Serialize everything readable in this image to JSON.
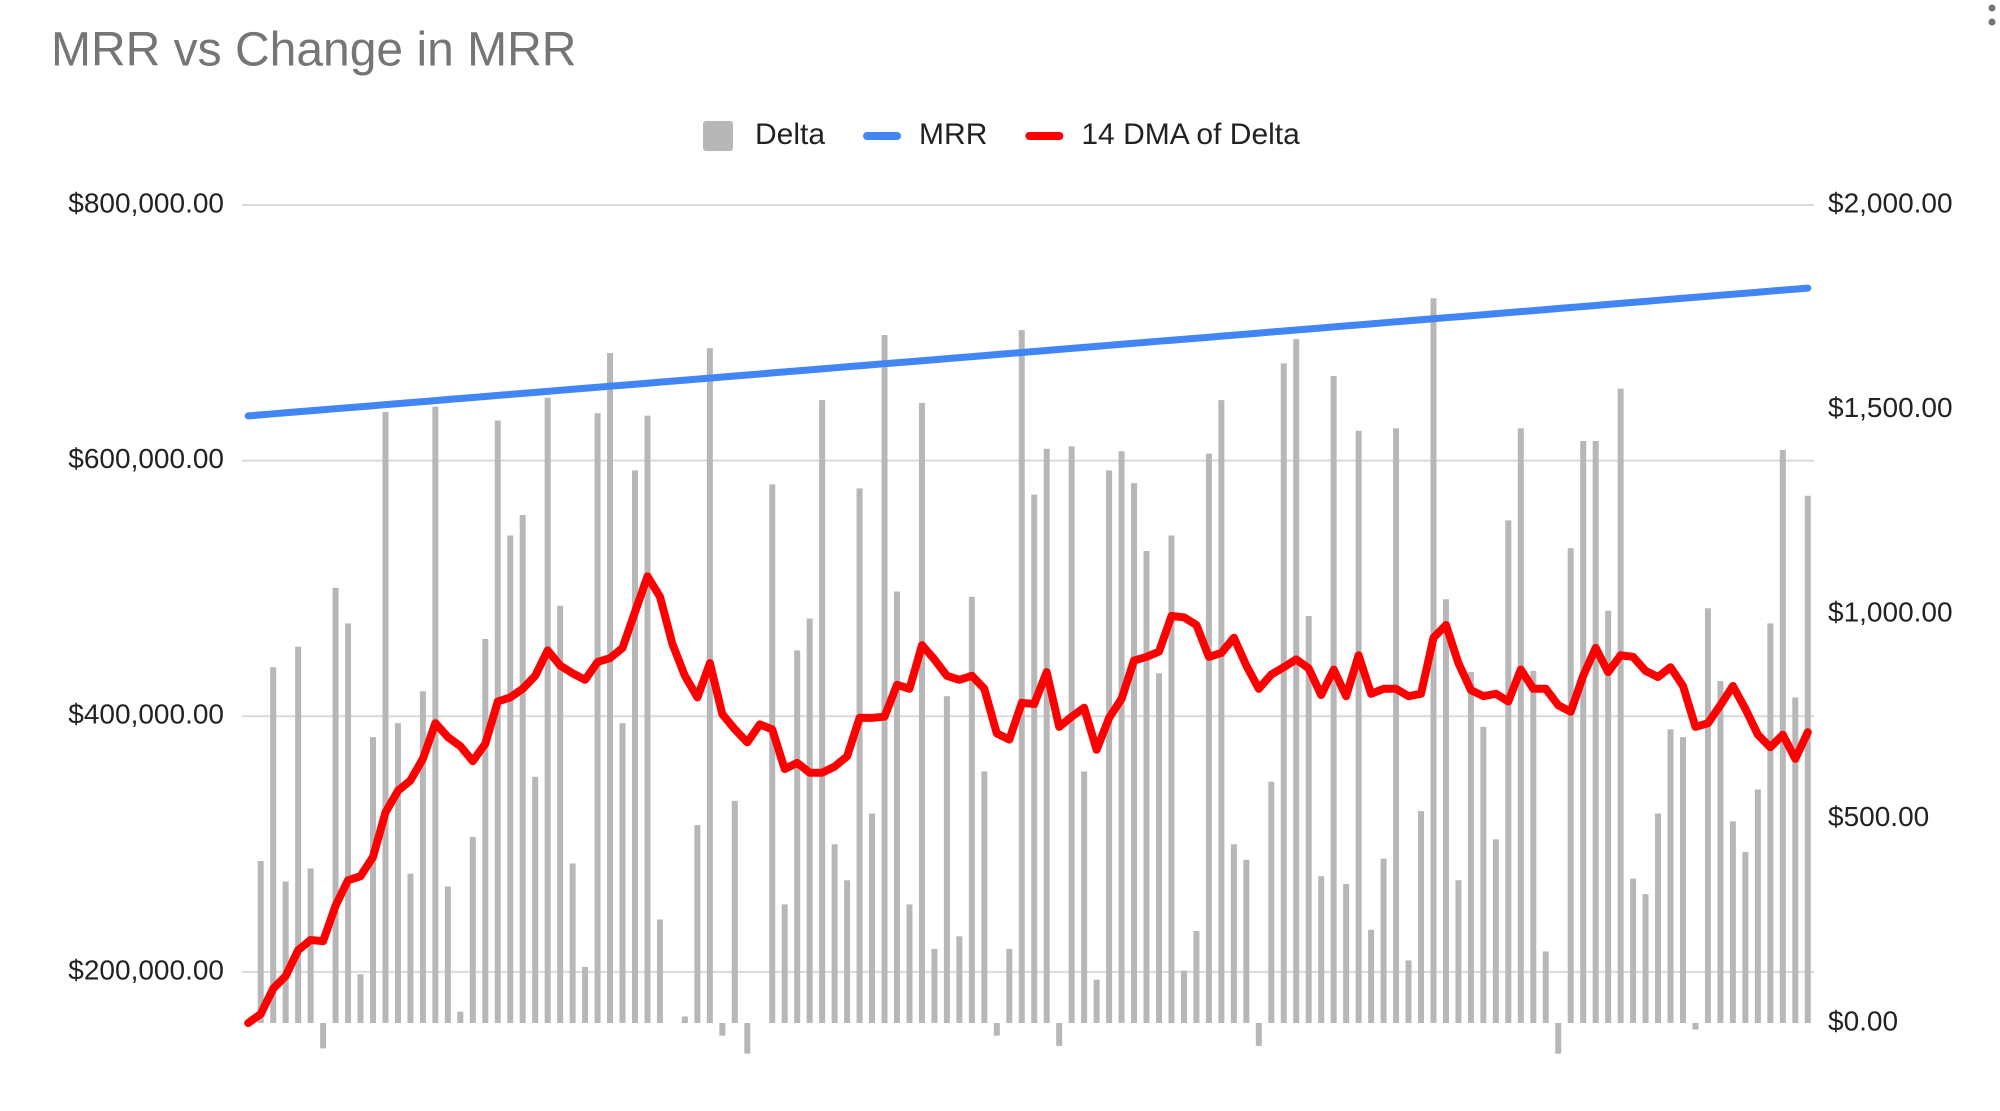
{
  "chart_data": {
    "type": "combo",
    "title": "MRR vs Change in MRR",
    "legend": "top",
    "grid": true,
    "ylim": [
      160000,
      800000
    ],
    "yticks": [
      {
        "value": 200000,
        "label": "$200,000.00"
      },
      {
        "value": 400000,
        "label": "$400,000.00"
      },
      {
        "value": 600000,
        "label": "$600,000.00"
      },
      {
        "value": 800000,
        "label": "$800,000.00"
      }
    ],
    "y2lim": [
      0,
      2000
    ],
    "y2ticks": [
      {
        "value": 0,
        "label": "$0.00"
      },
      {
        "value": 500,
        "label": "$500.00"
      },
      {
        "value": 1000,
        "label": "$1,000.00"
      },
      {
        "value": 1500,
        "label": "$1,500.00"
      },
      {
        "value": 2000,
        "label": "$2,000.00"
      }
    ],
    "series": [
      {
        "name": "Delta",
        "type": "bar",
        "axis": "y2",
        "color": "#b7b7b7",
        "values": [
          5,
          396,
          870,
          346,
          920,
          378,
          -62,
          1064,
          977,
          119,
          699,
          1494,
          733,
          365,
          811,
          1507,
          334,
          28,
          455,
          939,
          1473,
          1192,
          1242,
          602,
          1529,
          1020,
          390,
          137,
          1491,
          1638,
          733,
          1351,
          1485,
          253,
          0,
          16,
          484,
          1650,
          -31,
          543,
          -75,
          0,
          1317,
          290,
          911,
          989,
          1523,
          437,
          349,
          1307,
          512,
          1682,
          1055,
          290,
          1516,
          181,
          799,
          212,
          1042,
          615,
          -31,
          181,
          1694,
          1292,
          1404,
          -56,
          1410,
          615,
          106,
          1351,
          1398,
          1320,
          1154,
          855,
          1192,
          128,
          225,
          1392,
          1523,
          437,
          399,
          -56,
          590,
          1613,
          1672,
          995,
          359,
          1582,
          340,
          1448,
          228,
          402,
          1454,
          153,
          518,
          1772,
          1036,
          349,
          858,
          724,
          449,
          1229,
          1454,
          861,
          175,
          -75,
          1161,
          1423,
          1423,
          1008,
          1551,
          353,
          315,
          512,
          718,
          699,
          -16,
          1014,
          836,
          493,
          418,
          571,
          977,
          1401,
          796,
          1289
        ]
      },
      {
        "name": "MRR",
        "type": "line",
        "axis": "y",
        "color": "#4285f4",
        "values": [
          635000,
          635800,
          636600,
          637400,
          638200,
          639000,
          639800,
          640600,
          641400,
          642200,
          643000,
          643800,
          644600,
          645400,
          646200,
          647000,
          647800,
          648600,
          649400,
          650200,
          651000,
          651800,
          652600,
          653400,
          654200,
          655000,
          655800,
          656600,
          657400,
          658200,
          659000,
          659800,
          660600,
          661400,
          662200,
          663000,
          663800,
          664600,
          665400,
          666200,
          667000,
          667800,
          668600,
          669400,
          670200,
          671000,
          671800,
          672600,
          673400,
          674200,
          675000,
          675800,
          676600,
          677400,
          678200,
          679000,
          679800,
          680600,
          681400,
          682200,
          683000,
          683800,
          684600,
          685400,
          686200,
          687000,
          687800,
          688600,
          689400,
          690200,
          691000,
          691800,
          692600,
          693400,
          694200,
          695000,
          695800,
          696600,
          697400,
          698200,
          699000,
          699800,
          700600,
          701400,
          702200,
          703000,
          703800,
          704600,
          705400,
          706200,
          707000,
          707800,
          708600,
          709400,
          710200,
          711000,
          711800,
          712600,
          713400,
          714200,
          715000,
          715800,
          716600,
          717400,
          718200,
          719000,
          719800,
          720600,
          721400,
          722200,
          723000,
          723800,
          724600,
          725400,
          726200,
          727000,
          727800,
          728600,
          729400,
          730200,
          731000,
          731800,
          732600,
          733400,
          734200,
          735000
        ]
      },
      {
        "name": "14 DMA of Delta",
        "type": "line",
        "axis": "y2",
        "color": "#ff0000",
        "values": [
          0,
          22,
          84,
          115,
          178,
          203,
          200,
          287,
          349,
          359,
          406,
          515,
          568,
          593,
          646,
          733,
          699,
          677,
          640,
          683,
          786,
          796,
          817,
          849,
          911,
          874,
          855,
          839,
          883,
          892,
          917,
          1005,
          1092,
          1042,
          927,
          849,
          796,
          880,
          755,
          718,
          686,
          730,
          718,
          621,
          636,
          612,
          612,
          627,
          652,
          746,
          746,
          749,
          827,
          817,
          924,
          889,
          849,
          839,
          849,
          817,
          708,
          693,
          783,
          780,
          858,
          724,
          749,
          771,
          668,
          746,
          793,
          886,
          895,
          908,
          995,
          992,
          973,
          895,
          905,
          942,
          874,
          817,
          852,
          870,
          889,
          867,
          802,
          864,
          799,
          899,
          805,
          817,
          817,
          799,
          805,
          942,
          973,
          880,
          814,
          799,
          805,
          786,
          864,
          817,
          817,
          777,
          761,
          849,
          917,
          858,
          899,
          895,
          861,
          846,
          870,
          824,
          724,
          733,
          777,
          824,
          768,
          705,
          674,
          705,
          646,
          711
        ]
      }
    ]
  }
}
